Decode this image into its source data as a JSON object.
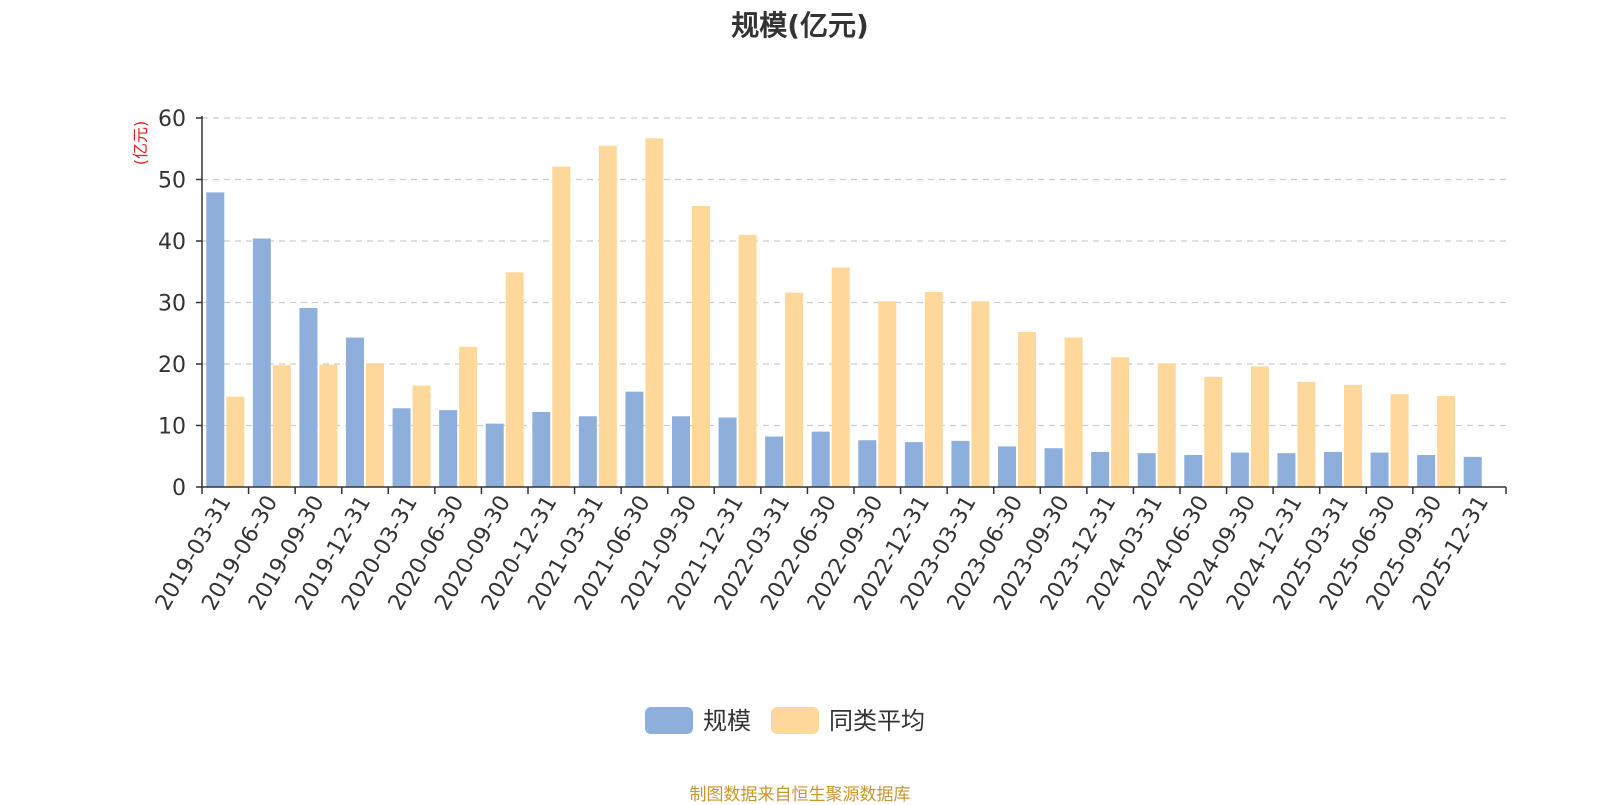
{
  "chart_data": {
    "type": "bar",
    "title": "规模(亿元)",
    "ylabel": "(亿元)",
    "xlabel": "",
    "ylim": [
      0,
      60
    ],
    "yticks": [
      0,
      10,
      20,
      30,
      40,
      50,
      60
    ],
    "grid": true,
    "legend_position": "bottom",
    "categories": [
      "2019-03-31",
      "2019-06-30",
      "2019-09-30",
      "2019-12-31",
      "2020-03-31",
      "2020-06-30",
      "2020-09-30",
      "2020-12-31",
      "2021-03-31",
      "2021-06-30",
      "2021-09-30",
      "2021-12-31",
      "2022-03-31",
      "2022-06-30",
      "2022-09-30",
      "2022-12-31",
      "2023-03-31",
      "2023-06-30",
      "2023-09-30",
      "2023-12-31",
      "2024-03-31",
      "2024-06-30",
      "2024-09-30",
      "2024-12-31",
      "2025-03-31",
      "2025-06-30",
      "2025-09-30",
      "2025-12-31"
    ],
    "series": [
      {
        "name": "规模",
        "color": "#8eaedb",
        "values": [
          47.9,
          40.4,
          29.1,
          24.3,
          12.8,
          12.5,
          10.3,
          12.2,
          11.5,
          15.5,
          11.5,
          11.3,
          8.2,
          9.0,
          7.6,
          7.3,
          7.5,
          6.6,
          6.3,
          5.7,
          5.5,
          5.2,
          5.6,
          5.5,
          5.7,
          5.6,
          5.2,
          4.9
        ]
      },
      {
        "name": "同类平均",
        "color": "#fed89a",
        "values": [
          14.7,
          19.8,
          19.9,
          20.1,
          16.5,
          22.8,
          34.9,
          52.1,
          55.5,
          56.7,
          45.7,
          41.0,
          31.6,
          35.7,
          30.2,
          31.7,
          30.2,
          25.2,
          24.3,
          21.1,
          20.1,
          17.9,
          19.6,
          17.1,
          16.6,
          15.1,
          14.8,
          null
        ]
      }
    ]
  },
  "source_note": "制图数据来自恒生聚源数据库"
}
